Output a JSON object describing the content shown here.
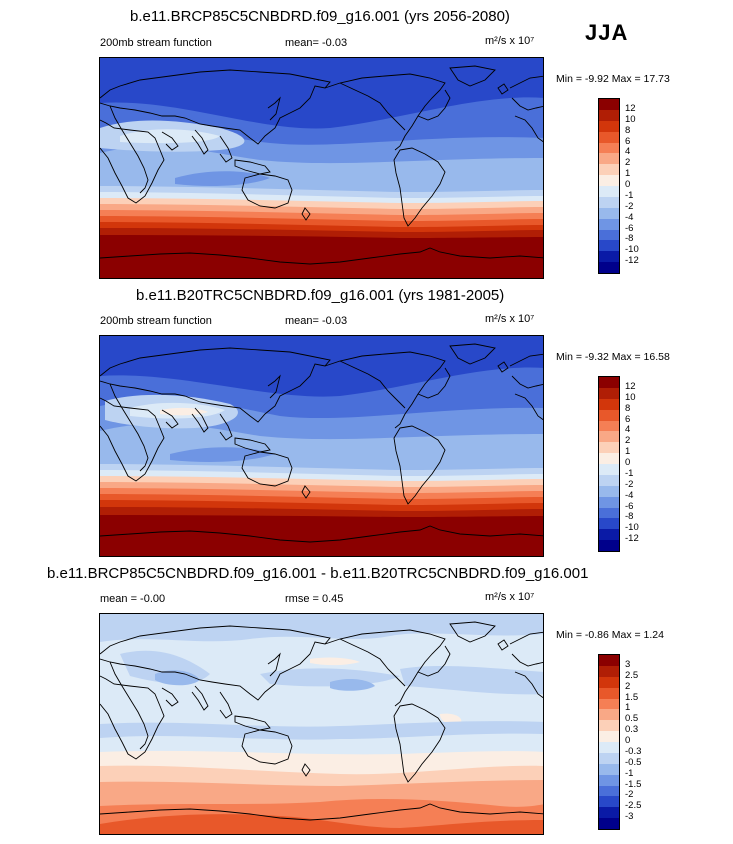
{
  "season": "JJA",
  "chart_data": [
    {
      "type": "heatmap",
      "title": "b.e11.BRCP85C5CNBDRD.f09_g16.001 (yrs 2056-2080)",
      "variable": "200mb stream function",
      "mean_text": "mean=  -0.03",
      "units_text": "m²/s x 10⁷",
      "minmax_text": "Min =  -9.92 Max =  17.73",
      "min": -9.92,
      "max": 17.73,
      "levels": [
        "12",
        "10",
        "8",
        "6",
        "4",
        "2",
        "1",
        "0",
        "-1",
        "-2",
        "-4",
        "-6",
        "-8",
        "-10",
        "-12"
      ],
      "colors": [
        "#8b0000",
        "#b01e05",
        "#d2360b",
        "#e8582a",
        "#f57f55",
        "#f9a886",
        "#fcd0b8",
        "#fbeee4",
        "#dceaf7",
        "#bdd3f2",
        "#98b9ec",
        "#6f95e4",
        "#4a6fd9",
        "#2848c9",
        "#0a1aa6",
        "#00008b"
      ]
    },
    {
      "type": "heatmap",
      "title": "b.e11.B20TRC5CNBDRD.f09_g16.001 (yrs 1981-2005)",
      "variable": "200mb stream function",
      "mean_text": "mean=  -0.03",
      "units_text": "m²/s x 10⁷",
      "minmax_text": "Min =  -9.32 Max =  16.58",
      "min": -9.32,
      "max": 16.58,
      "levels": [
        "12",
        "10",
        "8",
        "6",
        "4",
        "2",
        "1",
        "0",
        "-1",
        "-2",
        "-4",
        "-6",
        "-8",
        "-10",
        "-12"
      ],
      "colors": [
        "#8b0000",
        "#b01e05",
        "#d2360b",
        "#e8582a",
        "#f57f55",
        "#f9a886",
        "#fcd0b8",
        "#fbeee4",
        "#dceaf7",
        "#bdd3f2",
        "#98b9ec",
        "#6f95e4",
        "#4a6fd9",
        "#2848c9",
        "#0a1aa6",
        "#00008b"
      ]
    },
    {
      "type": "heatmap",
      "title": "b.e11.BRCP85C5CNBDRD.f09_g16.001 - b.e11.B20TRC5CNBDRD.f09_g16.001",
      "mean_text": "mean =  -0.00",
      "rmse_text": "rmse =   0.45",
      "units_text": "m²/s x 10⁷",
      "minmax_text": "Min =  -0.86 Max =   1.24",
      "min": -0.86,
      "max": 1.24,
      "levels": [
        "3",
        "2.5",
        "2",
        "1.5",
        "1",
        "0.5",
        "0.3",
        "0",
        "-0.3",
        "-0.5",
        "-1",
        "-1.5",
        "-2",
        "-2.5",
        "-3"
      ],
      "colors": [
        "#8b0000",
        "#b01e05",
        "#d2360b",
        "#e8582a",
        "#f57f55",
        "#f9a886",
        "#fcd0b8",
        "#fbeee4",
        "#dceaf7",
        "#bdd3f2",
        "#98b9ec",
        "#6f95e4",
        "#4a6fd9",
        "#2848c9",
        "#0a1aa6",
        "#00008b"
      ]
    }
  ]
}
